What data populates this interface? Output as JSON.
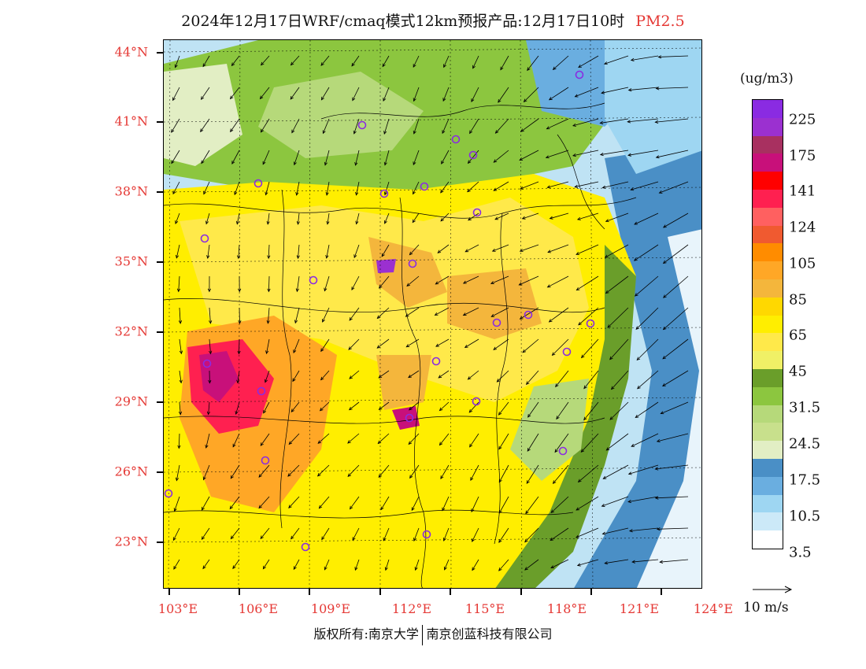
{
  "title": {
    "main": "2024年12月17日WRF/cmaq模式12km预报产品:12月17日10时",
    "variable": "PM2.5"
  },
  "axes": {
    "lat_labels": [
      "44°N",
      "41°N",
      "38°N",
      "35°N",
      "32°N",
      "29°N",
      "26°N",
      "23°N"
    ],
    "lon_labels": [
      "103°E",
      "106°E",
      "109°E",
      "112°E",
      "115°E",
      "118°E",
      "121°E",
      "124°E"
    ]
  },
  "legend": {
    "unit": "(ug/m3)",
    "colors": [
      "#8a2be2",
      "#9b30d0",
      "#a83060",
      "#c8107a",
      "#ff0000",
      "#ff2050",
      "#ff6060",
      "#f05a30",
      "#ff8c00",
      "#ffa726",
      "#f4b63c",
      "#ffd800",
      "#ffee00",
      "#ffe94a",
      "#f0f066",
      "#6a9e2a",
      "#8cc63f",
      "#b6d97a",
      "#c8e08c",
      "#e2eec4",
      "#4a8fc6",
      "#6aaee0",
      "#9ed6f2",
      "#cce9f8",
      "#ffffff"
    ],
    "labels": [
      "225",
      "175",
      "141",
      "124",
      "105",
      "85",
      "65",
      "45",
      "31.5",
      "24.5",
      "17.5",
      "10.5",
      "3.5"
    ]
  },
  "wind_key": {
    "label": "10 m/s"
  },
  "copyright": {
    "left": "版权所有:南京大学",
    "right": "南京创蓝科技有限公司"
  }
}
